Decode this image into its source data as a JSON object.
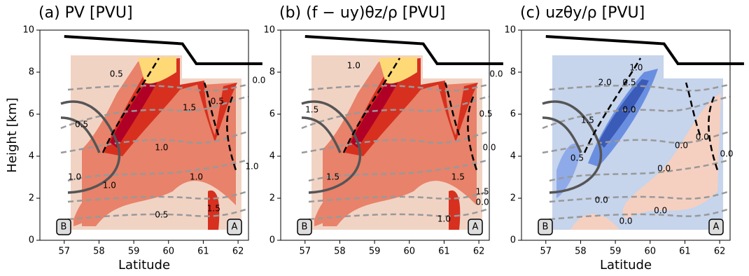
{
  "chart_data": [
    {
      "type": "contour",
      "title": "(a) PV [PVU]",
      "xlabel": "Latitude",
      "ylabel": "Height [km]",
      "xlim": [
        56.3,
        62.3
      ],
      "ylim": [
        0,
        10
      ],
      "xticks": [
        57,
        58,
        59,
        60,
        61,
        62
      ],
      "yticks": [
        0,
        2,
        4,
        6,
        8,
        10
      ],
      "palette": "reds",
      "corner_labels": [
        "B",
        "A"
      ],
      "terrain": {
        "color": "#000000",
        "x": [
          57,
          60.4,
          60.8,
          62.7
        ],
        "y": [
          9.7,
          9.35,
          8.4,
          8.4
        ]
      },
      "annotations": [
        {
          "text": "0.5",
          "x": 58.5,
          "y": 7.9
        },
        {
          "text": "0.5",
          "x": 57.5,
          "y": 5.5
        },
        {
          "text": "1.0",
          "x": 59.8,
          "y": 4.4
        },
        {
          "text": "1.0",
          "x": 57.3,
          "y": 3.0
        },
        {
          "text": "1.0",
          "x": 58.3,
          "y": 2.6
        },
        {
          "text": "1.0",
          "x": 60.8,
          "y": 3.0
        },
        {
          "text": "0.5",
          "x": 59.8,
          "y": 1.2
        },
        {
          "text": "1.5",
          "x": 61.3,
          "y": 1.5
        },
        {
          "text": "1.5",
          "x": 60.6,
          "y": 6.3
        },
        {
          "text": "0.5",
          "x": 61.4,
          "y": 6.6
        },
        {
          "text": "0.0",
          "x": 62.6,
          "y": 7.6
        },
        {
          "text": "1.0",
          "x": 62.4,
          "y": 3.5
        }
      ]
    },
    {
      "type": "contour",
      "title": "(b) (f − uy)θz/ρ [PVU]",
      "xlim": [
        56.3,
        62.3
      ],
      "ylim": [
        0,
        10
      ],
      "xticks": [
        57,
        58,
        59,
        60,
        61,
        62
      ],
      "yticks": [
        0,
        2,
        4,
        6,
        8,
        10
      ],
      "palette": "reds",
      "corner_labels": [
        "B",
        "A"
      ],
      "terrain": {
        "color": "#000000",
        "x": [
          57,
          60.4,
          60.8,
          62.7
        ],
        "y": [
          9.7,
          9.35,
          8.4,
          8.4
        ]
      },
      "annotations": [
        {
          "text": "1.5",
          "x": 57.2,
          "y": 6.2
        },
        {
          "text": "1.0",
          "x": 58.4,
          "y": 8.3
        },
        {
          "text": "1.5",
          "x": 57.8,
          "y": 3.0
        },
        {
          "text": "1.0",
          "x": 61.0,
          "y": 1.0
        },
        {
          "text": "1.5",
          "x": 61.4,
          "y": 3.0
        },
        {
          "text": "1.5",
          "x": 62.1,
          "y": 2.3
        },
        {
          "text": "0.5",
          "x": 62.2,
          "y": 6.0
        },
        {
          "text": "0.0",
          "x": 62.5,
          "y": 7.9
        },
        {
          "text": "0.0",
          "x": 62.3,
          "y": 4.4
        },
        {
          "text": "0.0",
          "x": 62.1,
          "y": 1.8
        }
      ]
    },
    {
      "type": "contour",
      "title": "(c) uzθy/ρ [PVU]",
      "xlabel": "Latitude",
      "xlim": [
        56.3,
        62.3
      ],
      "ylim": [
        0,
        10
      ],
      "xticks": [
        57,
        58,
        59,
        60,
        61,
        62
      ],
      "yticks": [
        0,
        2,
        4,
        6,
        8,
        10
      ],
      "palette": "blues",
      "corner_labels": [
        "B",
        "A"
      ],
      "terrain": {
        "color": "#000000",
        "x": [
          57,
          60.4,
          60.8,
          62.7
        ],
        "y": [
          9.7,
          9.35,
          8.4,
          8.4
        ]
      },
      "annotations": [
        {
          "text": "2.0",
          "x": 58.7,
          "y": 7.5
        },
        {
          "text": "1.0",
          "x": 59.6,
          "y": 8.2
        },
        {
          "text": "0.5",
          "x": 59.4,
          "y": 7.5
        },
        {
          "text": "1.5",
          "x": 58.2,
          "y": 5.7
        },
        {
          "text": "0.0",
          "x": 59.4,
          "y": 6.2
        },
        {
          "text": "0.5",
          "x": 57.9,
          "y": 3.9
        },
        {
          "text": "0.0",
          "x": 60.9,
          "y": 4.5
        },
        {
          "text": "0.0",
          "x": 60.4,
          "y": 3.4
        },
        {
          "text": "0.0",
          "x": 61.5,
          "y": 4.9
        },
        {
          "text": "0.0",
          "x": 62.2,
          "y": 4.1
        },
        {
          "text": "0.0",
          "x": 58.6,
          "y": 1.9
        },
        {
          "text": "0.0",
          "x": 59.3,
          "y": 0.9
        },
        {
          "text": "0.0",
          "x": 60.3,
          "y": 1.4
        }
      ]
    }
  ]
}
